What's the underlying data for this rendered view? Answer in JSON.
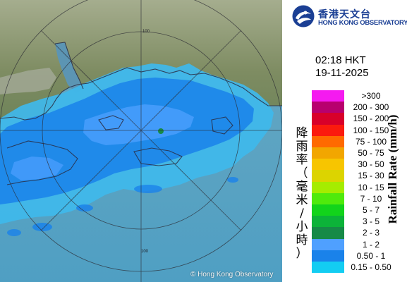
{
  "header": {
    "org_name_zh": "香港天文台",
    "org_name_en": "HONG KONG OBSERVATORY"
  },
  "timestamp": {
    "time": "02:18 HKT",
    "date": "19-11-2025"
  },
  "legend": {
    "title_zh": "降雨率（毫米/小時）",
    "title_en": "Rainfall Rate (mm/h)",
    "entries": [
      {
        "label": ">300",
        "color": "#f51af0"
      },
      {
        "label": "200 - 300",
        "color": "#b8006e"
      },
      {
        "label": "150 - 200",
        "color": "#d8002a"
      },
      {
        "label": "100 - 150",
        "color": "#fb1a0e"
      },
      {
        "label": "75 - 100",
        "color": "#ff6a00"
      },
      {
        "label": "50 - 75",
        "color": "#f2a600"
      },
      {
        "label": "30 - 50",
        "color": "#f7c500"
      },
      {
        "label": "15 - 30",
        "color": "#dcd400"
      },
      {
        "label": "10 - 15",
        "color": "#a5ec00"
      },
      {
        "label": "7 - 10",
        "color": "#4fea0c"
      },
      {
        "label": "5 - 7",
        "color": "#12d41b"
      },
      {
        "label": "3 - 5",
        "color": "#0cb339"
      },
      {
        "label": "2 - 3",
        "color": "#168a47"
      },
      {
        "label": "1 - 2",
        "color": "#4fa0ff"
      },
      {
        "label": "0.50 - 1",
        "color": "#1a82ea"
      },
      {
        "label": "0.15 - 0.50",
        "color": "#13cdf2"
      }
    ]
  },
  "map": {
    "range_ring_label": "100",
    "copyright": "© Hong Kong Observatory",
    "colors": {
      "sea": "#5ba7c8",
      "land": "#7c8f62",
      "radar_light": "#13cdf2",
      "radar_mid": "#1a82ea",
      "radar_heavy": "#4fa0ff"
    }
  }
}
